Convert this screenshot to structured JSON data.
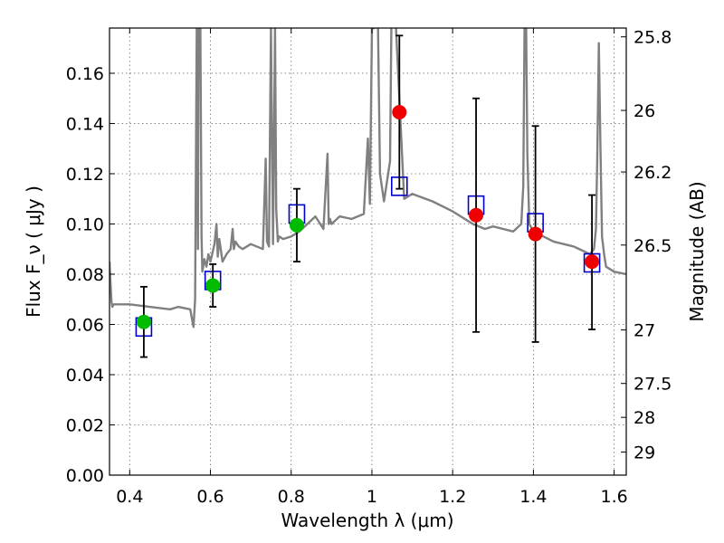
{
  "chart_data": {
    "type": "scatter",
    "title": "",
    "xlabel": "Wavelength  λ (μm)",
    "ylabel": "Flux  F_ν  ( μJy )",
    "ylabel_right": "Magnitude (AB)",
    "xlim": [
      0.35,
      1.63
    ],
    "ylim": [
      0.0,
      0.178
    ],
    "grid": true,
    "x_ticks": [
      0.4,
      0.6,
      0.8,
      1.0,
      1.2,
      1.4,
      1.6
    ],
    "x_tick_labels": [
      "0.4",
      "0.6",
      "0.8",
      "1",
      "1.2",
      "1.4",
      "1.6"
    ],
    "y_ticks": [
      0.0,
      0.02,
      0.04,
      0.06,
      0.08,
      0.1,
      0.12,
      0.14,
      0.16
    ],
    "y_tick_labels": [
      "0.00",
      "0.02",
      "0.04",
      "0.06",
      "0.08",
      "0.10",
      "0.12",
      "0.14",
      "0.16"
    ],
    "right_ticks": [
      {
        "label": "25.8",
        "flux": 0.1745
      },
      {
        "label": "26",
        "flux": 0.1452
      },
      {
        "label": "26.2",
        "flux": 0.1207
      },
      {
        "label": "26.5",
        "flux": 0.0916
      },
      {
        "label": "27",
        "flux": 0.0578
      },
      {
        "label": "27.5",
        "flux": 0.0365
      },
      {
        "label": "28",
        "flux": 0.023
      },
      {
        "label": "29",
        "flux": 0.0092
      }
    ],
    "model_spectrum": {
      "color": "#808080",
      "x": [
        0.35,
        0.352,
        0.355,
        0.357,
        0.36,
        0.4,
        0.45,
        0.5,
        0.52,
        0.55,
        0.558,
        0.562,
        0.566,
        0.567,
        0.569,
        0.571,
        0.575,
        0.578,
        0.58,
        0.585,
        0.59,
        0.595,
        0.6,
        0.61,
        0.615,
        0.618,
        0.622,
        0.63,
        0.64,
        0.65,
        0.655,
        0.658,
        0.662,
        0.67,
        0.68,
        0.7,
        0.73,
        0.737,
        0.74,
        0.745,
        0.75,
        0.755,
        0.76,
        0.763,
        0.767,
        0.77,
        0.78,
        0.8,
        0.82,
        0.84,
        0.86,
        0.88,
        0.89,
        0.893,
        0.896,
        0.9,
        0.92,
        0.95,
        0.98,
        0.99,
        0.995,
        1.0,
        1.003,
        1.006,
        1.01,
        1.015,
        1.02,
        1.03,
        1.045,
        1.05,
        1.08,
        1.1,
        1.15,
        1.2,
        1.25,
        1.28,
        1.3,
        1.35,
        1.37,
        1.375,
        1.378,
        1.382,
        1.385,
        1.39,
        1.4,
        1.45,
        1.5,
        1.54,
        1.55,
        1.555,
        1.558,
        1.562,
        1.566,
        1.57,
        1.575,
        1.58,
        1.6,
        1.63
      ],
      "y": [
        0.085,
        0.078,
        0.069,
        0.067,
        0.068,
        0.068,
        0.067,
        0.066,
        0.067,
        0.066,
        0.059,
        0.07,
        0.178,
        0.178,
        0.09,
        0.2,
        0.178,
        0.095,
        0.081,
        0.086,
        0.083,
        0.088,
        0.085,
        0.092,
        0.1,
        0.087,
        0.094,
        0.085,
        0.088,
        0.09,
        0.098,
        0.09,
        0.093,
        0.091,
        0.09,
        0.092,
        0.09,
        0.126,
        0.093,
        0.091,
        0.178,
        0.092,
        0.178,
        0.106,
        0.093,
        0.095,
        0.094,
        0.095,
        0.097,
        0.1,
        0.103,
        0.098,
        0.128,
        0.1,
        0.102,
        0.1,
        0.103,
        0.102,
        0.104,
        0.134,
        0.108,
        0.178,
        0.178,
        0.178,
        0.18,
        0.178,
        0.12,
        0.109,
        0.125,
        0.21,
        0.11,
        0.112,
        0.109,
        0.105,
        0.1,
        0.098,
        0.099,
        0.097,
        0.1,
        0.115,
        0.178,
        0.178,
        0.128,
        0.1,
        0.097,
        0.093,
        0.091,
        0.088,
        0.09,
        0.098,
        0.125,
        0.172,
        0.13,
        0.095,
        0.088,
        0.083,
        0.081,
        0.08
      ]
    },
    "model_boxes": {
      "color": "#0000cc",
      "x": [
        0.435,
        0.606,
        0.814,
        1.068,
        1.258,
        1.405,
        1.545
      ],
      "y": [
        0.059,
        0.0775,
        0.104,
        0.115,
        0.1075,
        0.1005,
        0.0845
      ]
    },
    "series": [
      {
        "color": "#00bb00",
        "x": [
          0.435,
          0.606,
          0.814
        ],
        "y": [
          0.061,
          0.0755,
          0.0995
        ],
        "err_low": [
          0.047,
          0.067,
          0.085
        ],
        "err_high": [
          0.075,
          0.084,
          0.114
        ]
      },
      {
        "color": "#ee0000",
        "x": [
          1.068,
          1.258,
          1.405,
          1.545
        ],
        "y": [
          0.1445,
          0.1035,
          0.096,
          0.085
        ],
        "err_low": [
          0.114,
          0.057,
          0.053,
          0.058
        ],
        "err_high": [
          0.175,
          0.15,
          0.139,
          0.1115
        ]
      }
    ]
  }
}
